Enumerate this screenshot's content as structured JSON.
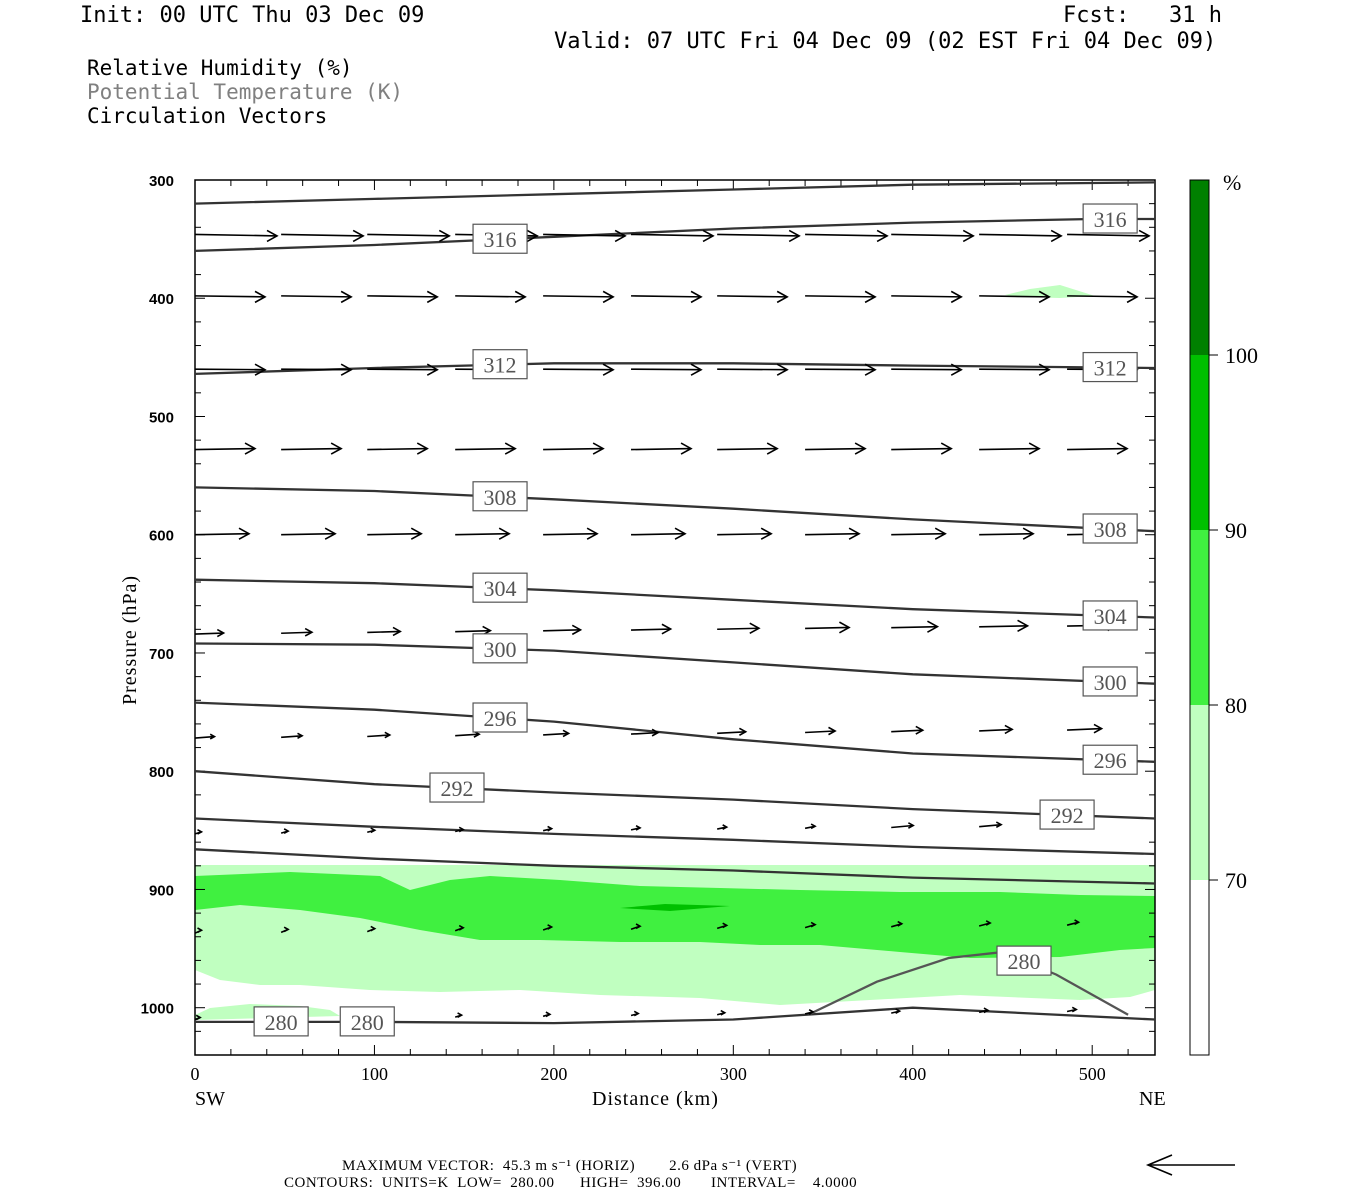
{
  "header": {
    "init": "Init: 00 UTC Thu 03 Dec 09",
    "fcst": "Fcst:   31 h",
    "valid": "Valid: 07 UTC Fri 04 Dec 09 (02 EST Fri 04 Dec 09)"
  },
  "legend": {
    "rh": "Relative Humidity (%)",
    "theta": "Potential Temperature (K)",
    "vectors": "Circulation Vectors"
  },
  "footer": {
    "max_vector": "MAXIMUM VECTOR:  45.3 m s⁻¹ (HORIZ)        2.6 dPa s⁻¹ (VERT)",
    "contours": "CONTOURS:  UNITS=K  LOW=  280.00      HIGH=  396.00       INTERVAL=    4.0000"
  },
  "colors": {
    "rh_70_80": "#c0ffc0",
    "rh_80_90": "#40f040",
    "rh_90_100": "#00c000",
    "rh_100_plus": "#008000",
    "contour": "#333333"
  },
  "chart_data": {
    "type": "cross-section",
    "xlabel": "Distance (km)",
    "ylabel": "Pressure (hPa)",
    "xlim": [
      0,
      535
    ],
    "ylim": [
      1040,
      300
    ],
    "x_ticks": [
      "0",
      "100",
      "200",
      "300",
      "400",
      "500"
    ],
    "y_ticks": [
      "300",
      "400",
      "500",
      "600",
      "700",
      "800",
      "900",
      "1000"
    ],
    "x_end_labels": {
      "left": "SW",
      "right": "NE"
    },
    "colorbar": {
      "unit": "%",
      "levels": [
        "70",
        "80",
        "90",
        "100"
      ],
      "colors": [
        "#ffffff",
        "#c0ffc0",
        "#40f040",
        "#00c000",
        "#008000"
      ]
    },
    "theta_contours": [
      {
        "label": "316",
        "x": [
          0,
          100,
          200,
          300,
          400,
          500,
          535
        ],
        "p": [
          360,
          355,
          348,
          341,
          336,
          333,
          333
        ]
      },
      {
        "label": "",
        "x": [
          0,
          100,
          200,
          300,
          400,
          535
        ],
        "p": [
          320,
          316,
          312,
          308,
          304,
          302
        ]
      },
      {
        "label": "312",
        "x": [
          0,
          100,
          200,
          300,
          400,
          535
        ],
        "p": [
          464,
          459,
          455,
          455,
          457,
          459
        ]
      },
      {
        "label": "308",
        "x": [
          0,
          100,
          200,
          300,
          400,
          535
        ],
        "p": [
          560,
          563,
          570,
          578,
          587,
          597
        ]
      },
      {
        "label": "304",
        "x": [
          0,
          100,
          200,
          300,
          400,
          535
        ],
        "p": [
          638,
          641,
          647,
          655,
          663,
          670
        ]
      },
      {
        "label": "300",
        "x": [
          0,
          100,
          200,
          300,
          400,
          535
        ],
        "p": [
          692,
          693,
          698,
          708,
          718,
          726
        ]
      },
      {
        "label": "296",
        "x": [
          0,
          100,
          200,
          300,
          400,
          535
        ],
        "p": [
          742,
          748,
          758,
          773,
          785,
          792
        ]
      },
      {
        "label": "292",
        "x": [
          0,
          100,
          200,
          300,
          400,
          535
        ],
        "p": [
          800,
          811,
          818,
          824,
          832,
          840
        ]
      },
      {
        "label": "",
        "x": [
          0,
          100,
          200,
          300,
          400,
          535
        ],
        "p": [
          840,
          847,
          853,
          858,
          864,
          870
        ]
      },
      {
        "label": "",
        "x": [
          0,
          100,
          200,
          300,
          400,
          535
        ],
        "p": [
          866,
          874,
          880,
          884,
          890,
          895
        ]
      },
      {
        "label": "280",
        "x": [
          0,
          100,
          200,
          300,
          400,
          535
        ],
        "p": [
          1012,
          1012,
          1013,
          1010,
          1000,
          1010
        ]
      },
      {
        "label": "280",
        "x": [
          343,
          380,
          420,
          450,
          480,
          520
        ],
        "p": [
          1005,
          978,
          958,
          953,
          972,
          1006
        ]
      }
    ],
    "rh_labels_on_contours": [
      "316",
      "316",
      "312",
      "312",
      "308",
      "308",
      "304",
      "304",
      "300",
      "300",
      "296",
      "296",
      "292",
      "292",
      "280",
      "280",
      "280"
    ]
  }
}
